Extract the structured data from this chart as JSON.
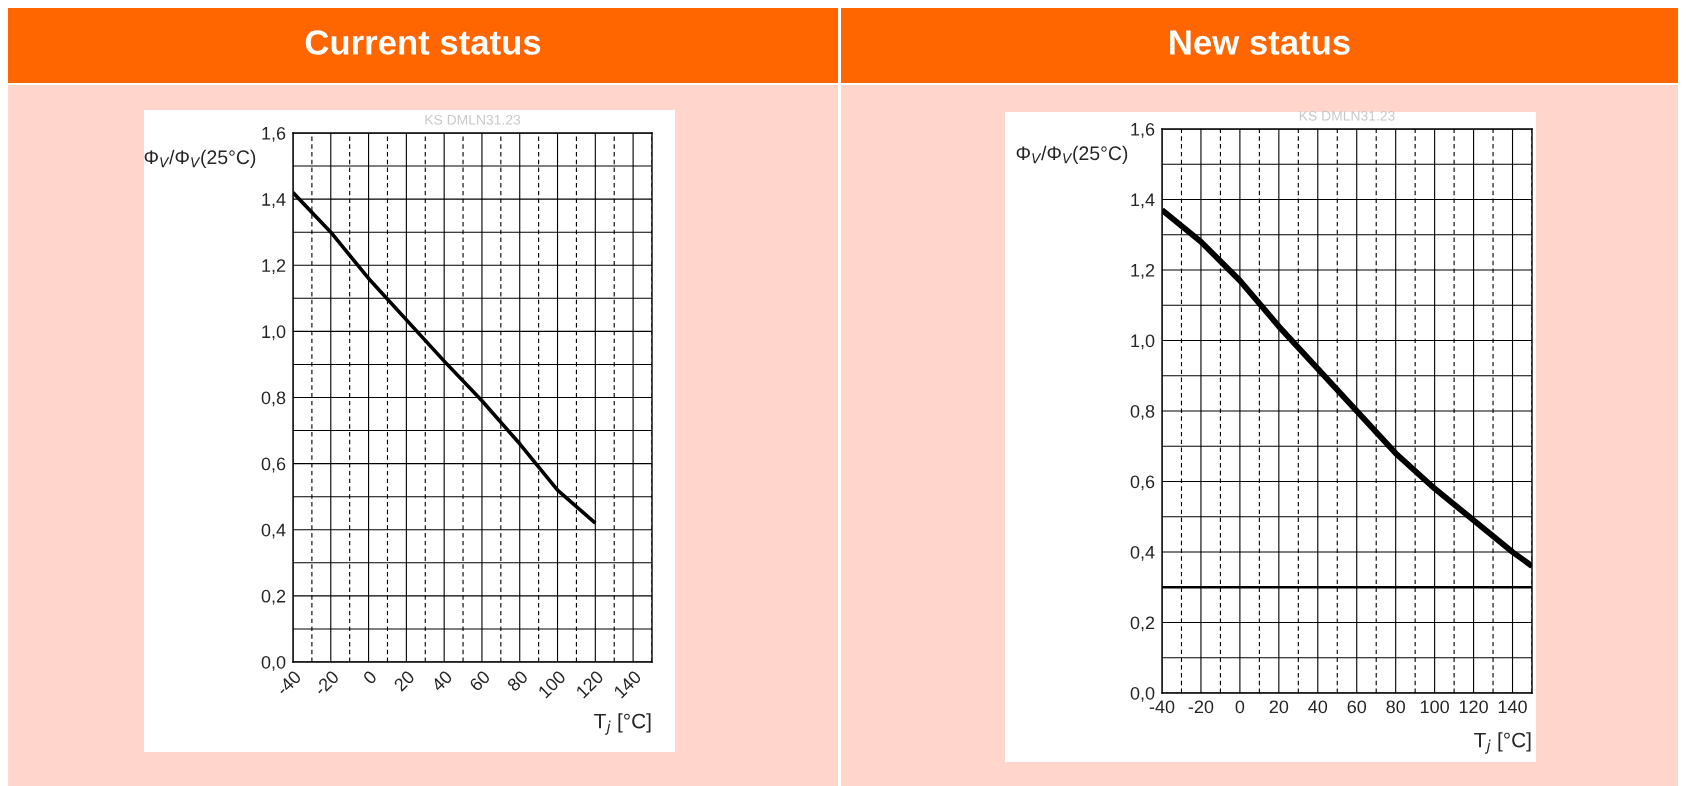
{
  "chart_data": [
    {
      "type": "line",
      "title": "Current status",
      "xlabel": "T$_{j}$ [°C]",
      "ylabel": "Φ$_{V}$/Φ$_{V}$(25°C)",
      "annotations": [
        "KS DMLN31.23"
      ],
      "series": [
        {
          "color": "#000000",
          "x": [
            -40,
            -20,
            0,
            40,
            60,
            80,
            100,
            120
          ],
          "values": [
            1.42,
            1.3,
            1.16,
            0.91,
            0.79,
            0.66,
            0.52,
            0.42
          ]
        }
      ],
      "xlim": [
        -40,
        150
      ],
      "xticks": [
        -40,
        -20,
        0,
        20,
        40,
        60,
        80,
        100,
        120,
        140
      ],
      "ylim": [
        0,
        1.6
      ],
      "yticks": [
        {
          "value": 0,
          "label": "0,0"
        },
        {
          "value": 0.2,
          "label": "0,2"
        },
        {
          "value": 0.4,
          "label": "0,4"
        },
        {
          "value": 0.6,
          "label": "0,6"
        },
        {
          "value": 0.8,
          "label": "0,8"
        },
        {
          "value": 1.0,
          "label": "1,0"
        },
        {
          "value": 1.2,
          "label": "1,2"
        },
        {
          "value": 1.4,
          "label": "1,4"
        },
        {
          "value": 1.6,
          "label": "1,6"
        }
      ],
      "grid": true,
      "line_style": "solid",
      "marker": "none"
    },
    {
      "type": "line",
      "title": "New status",
      "xlabel": "T$_{j}$ [°C]",
      "ylabel": "Φ$_{V}$/Φ$_{V}$(25°C)",
      "annotations": [
        "KS DMLN31.23"
      ],
      "series": [
        {
          "color": "#000000",
          "x": [
            -40,
            -20,
            0,
            20,
            40,
            60,
            80,
            100,
            120,
            140,
            150
          ],
          "values": [
            1.37,
            1.28,
            1.17,
            1.04,
            0.92,
            0.8,
            0.68,
            0.58,
            0.49,
            0.4,
            0.36
          ]
        }
      ],
      "xlim": [
        -40,
        150
      ],
      "xticks": [
        -40,
        -20,
        0,
        20,
        40,
        60,
        80,
        100,
        120,
        140
      ],
      "ylim": [
        0,
        1.6
      ],
      "yticks": [
        {
          "value": 0,
          "label": "0,0"
        },
        {
          "value": 0.2,
          "label": "0,2"
        },
        {
          "value": 0.4,
          "label": "0,4"
        },
        {
          "value": 0.6,
          "label": "0,6"
        },
        {
          "value": 0.8,
          "label": "0,8"
        },
        {
          "value": 1.0,
          "label": "1,0"
        },
        {
          "value": 1.2,
          "label": "1,2"
        },
        {
          "value": 1.4,
          "label": "1,4"
        },
        {
          "value": 1.6,
          "label": "1,6"
        }
      ],
      "ref_lines": [
        {
          "axis": "y",
          "value": 0.3,
          "color": "#000000"
        }
      ],
      "grid": true,
      "line_style": "solid",
      "marker": "none"
    }
  ]
}
